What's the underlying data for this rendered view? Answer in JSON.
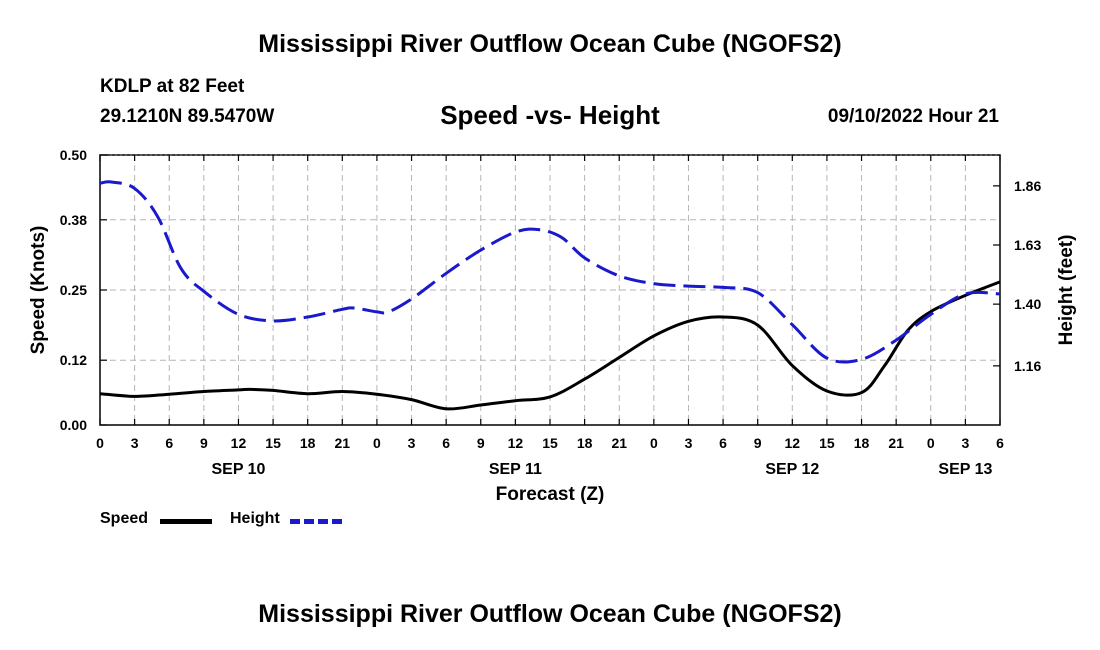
{
  "page": {
    "title": "Mississippi River Outflow Ocean Cube (NGOFS2)",
    "footer_title": "Mississippi River Outflow Ocean Cube (NGOFS2)",
    "station": "KDLP at 82 Feet",
    "coords": "29.1210N  89.5470W",
    "subtitle": "Speed -vs- Height",
    "datetime": "09/10/2022 Hour 21"
  },
  "chart_data": {
    "type": "line",
    "title": "Speed -vs- Height",
    "xlabel": "Forecast (Z)",
    "ylabel": "Speed (Knots)",
    "y2label": "Height (feet)",
    "xlim": [
      0,
      78
    ],
    "ylim": [
      0,
      0.5
    ],
    "y2lim": [
      0.93,
      1.98
    ],
    "x_ticks": [
      0,
      3,
      6,
      9,
      12,
      15,
      18,
      21,
      24,
      27,
      30,
      33,
      36,
      39,
      42,
      45,
      48,
      51,
      54,
      57,
      60,
      63,
      66,
      69,
      72,
      75,
      78
    ],
    "x_tick_labels": [
      "0",
      "3",
      "6",
      "9",
      "12",
      "15",
      "18",
      "21",
      "0",
      "3",
      "6",
      "9",
      "12",
      "15",
      "18",
      "21",
      "0",
      "3",
      "6",
      "9",
      "12",
      "15",
      "18",
      "21",
      "0",
      "3",
      "6"
    ],
    "date_labels": [
      {
        "x": 12,
        "label": "SEP 10"
      },
      {
        "x": 36,
        "label": "SEP 11"
      },
      {
        "x": 60,
        "label": "SEP 12"
      },
      {
        "x": 75,
        "label": "SEP 13"
      }
    ],
    "y_ticks": [
      0.0,
      0.12,
      0.25,
      0.38,
      0.5
    ],
    "y_tick_labels": [
      "0.00",
      "0.12",
      "0.25",
      "0.38",
      "0.50"
    ],
    "y2_ticks": [
      1.16,
      1.4,
      1.63,
      1.86
    ],
    "y2_tick_labels": [
      "1.16",
      "1.40",
      "1.63",
      "1.86"
    ],
    "grid": true,
    "legend_position": "bottom-left",
    "series": [
      {
        "name": "Speed",
        "axis": "left",
        "color": "#000000",
        "style": "solid",
        "x": [
          0,
          3,
          6,
          9,
          12,
          13,
          15,
          18,
          21,
          24,
          27,
          30,
          33,
          36,
          39,
          42,
          45,
          48,
          51,
          54,
          57,
          60,
          63,
          66,
          68,
          70,
          72,
          75,
          78
        ],
        "values": [
          0.058,
          0.053,
          0.057,
          0.062,
          0.065,
          0.066,
          0.064,
          0.058,
          0.062,
          0.057,
          0.047,
          0.03,
          0.037,
          0.045,
          0.052,
          0.085,
          0.125,
          0.165,
          0.192,
          0.2,
          0.185,
          0.11,
          0.063,
          0.06,
          0.11,
          0.175,
          0.21,
          0.24,
          0.265
        ]
      },
      {
        "name": "Height",
        "axis": "right",
        "color": "#1a1acc",
        "style": "dashed",
        "x": [
          0,
          1,
          3,
          5,
          7,
          9,
          12,
          15,
          18,
          21,
          22,
          24,
          25,
          27,
          30,
          33,
          36,
          38,
          40,
          42,
          45,
          48,
          51,
          54,
          57,
          60,
          63,
          66,
          69,
          72,
          75,
          78
        ],
        "values": [
          1.87,
          1.875,
          1.85,
          1.74,
          1.54,
          1.45,
          1.36,
          1.335,
          1.35,
          1.38,
          1.385,
          1.37,
          1.37,
          1.42,
          1.52,
          1.61,
          1.68,
          1.69,
          1.66,
          1.58,
          1.51,
          1.48,
          1.47,
          1.465,
          1.445,
          1.32,
          1.19,
          1.185,
          1.26,
          1.36,
          1.44,
          1.44
        ]
      }
    ]
  }
}
